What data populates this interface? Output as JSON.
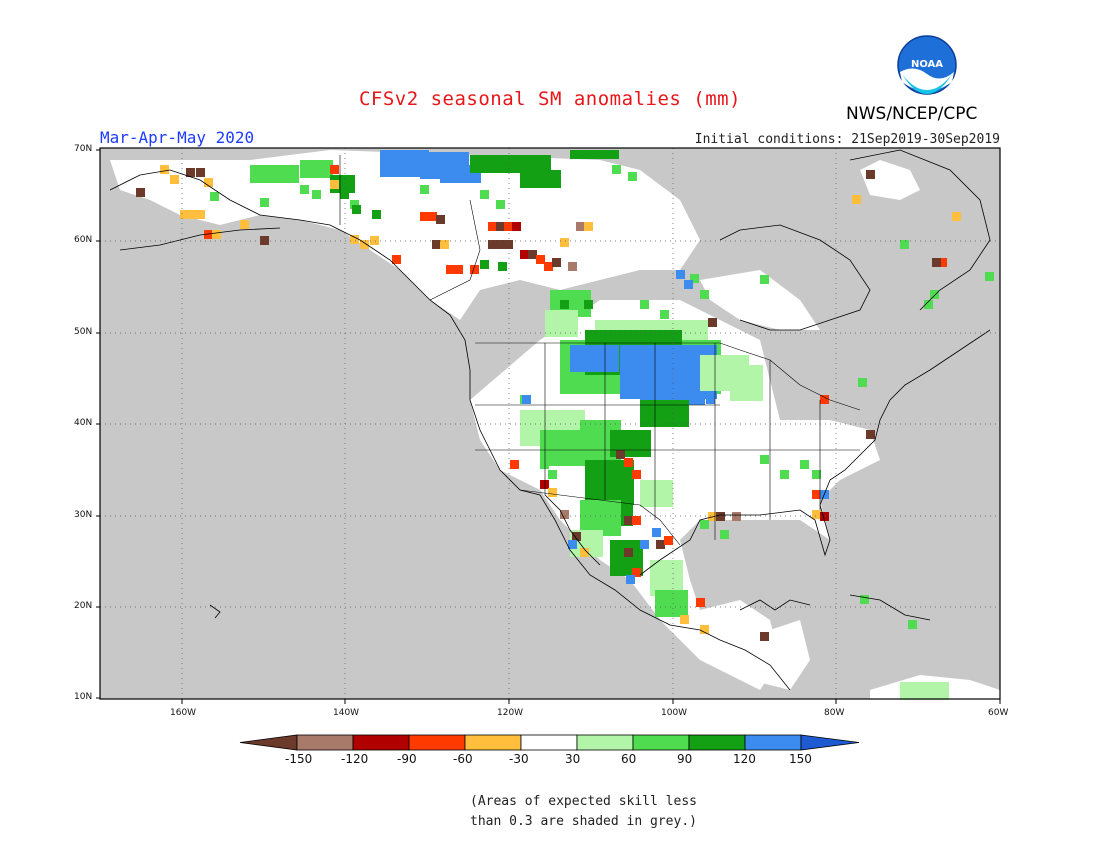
{
  "title": "CFSv2 seasonal SM anomalies (mm)",
  "season": "Mar-Apr-May 2020",
  "initial_conditions": "Initial conditions: 21Sep2019-30Sep2019",
  "agency": "NWS/NCEP/CPC",
  "logo_text": "NOAA",
  "note": [
    "(Areas of expected skill less",
    "than 0.3 are shaded in grey.)"
  ],
  "lat_labels": [
    "70N",
    "60N",
    "50N",
    "40N",
    "30N",
    "20N",
    "10N"
  ],
  "lon_labels": [
    "160W",
    "140W",
    "120W",
    "100W",
    "80W",
    "60W"
  ],
  "colorbar": {
    "labels": [
      "-150",
      "-120",
      "-90",
      "-60",
      "-30",
      "30",
      "60",
      "90",
      "120",
      "150"
    ],
    "colors": [
      "#6b3a2a",
      "#a87a6a",
      "#b00000",
      "#ff3a00",
      "#ffbe3c",
      "#ffffff",
      "#b2f5a8",
      "#50dc50",
      "#14a014",
      "#3c8cf0",
      "#1e5ad2"
    ]
  },
  "colors": {
    "land_grey": "#c8c8c8",
    "ocean": "#ffffff"
  }
}
